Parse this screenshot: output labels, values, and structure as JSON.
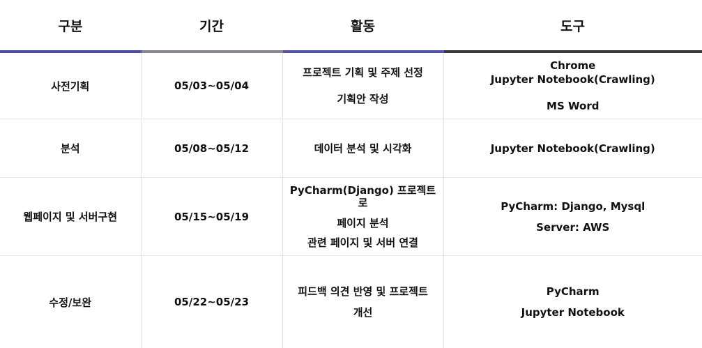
{
  "headers": [
    "구분",
    "기간",
    "활동",
    "도구"
  ],
  "rows": [
    {
      "phase": "사전기획",
      "period": "05/03~05/04",
      "activities": [
        "프로젝트 기획 및 주제 선정",
        "기획안 작성"
      ],
      "tools": [
        "Chrome",
        "Jupyter Notebook(Crawling)",
        "MS Word"
      ]
    },
    {
      "phase": "분석",
      "period": "05/08~05/12",
      "activities": [
        "데이터 분석 및 시각화"
      ],
      "tools": [
        "Jupyter Notebook(Crawling)"
      ]
    },
    {
      "phase": "웹페이지 및 서버구현",
      "period": "05/15~05/19",
      "activities": [
        "PyCharm(Django) 프로젝트로",
        "페이지 분석",
        "관련 페이지 및 서버 연결"
      ],
      "tools": [
        "PyCharm:  Django, Mysql",
        "Server:  AWS"
      ]
    },
    {
      "phase": "수정/보완",
      "period": "05/22~05/23",
      "activities": [
        "피드백 의견 반영 및 프로젝트",
        "개선"
      ],
      "tools": [
        "PyCharm",
        "Jupyter Notebook"
      ]
    }
  ]
}
